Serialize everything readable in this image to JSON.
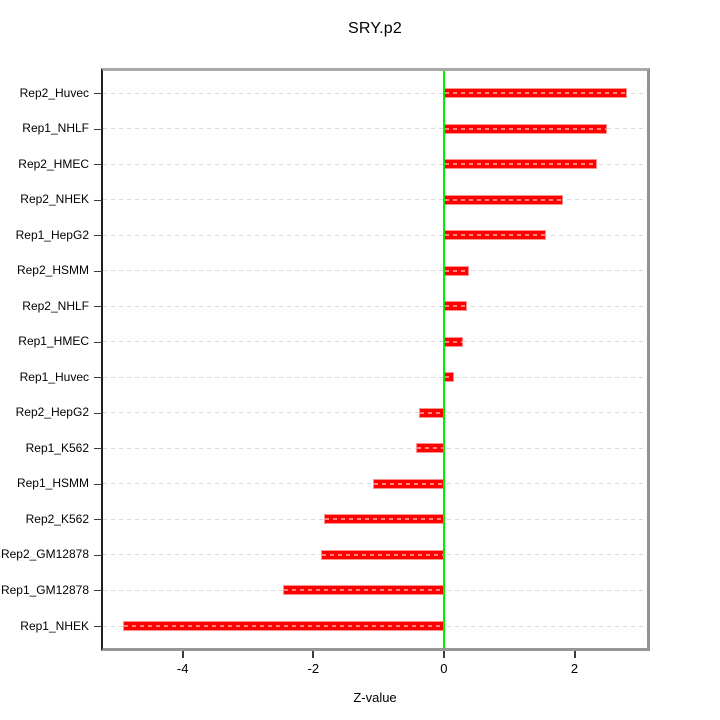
{
  "title": "SRY.p2",
  "axis": {
    "xlabel": "Z-value",
    "xtick_labels": [
      "-4",
      "-2",
      "0",
      "2"
    ]
  },
  "chart_data": {
    "type": "bar",
    "orientation": "horizontal",
    "title": "SRY.p2",
    "xlabel": "Z-value",
    "ylabel": "",
    "legend": "none",
    "grid": "horizontal dashed line at each category",
    "categories": [
      "Rep2_Huvec",
      "Rep1_NHLF",
      "Rep2_HMEC",
      "Rep2_NHEK",
      "Rep1_HepG2",
      "Rep2_HSMM",
      "Rep2_NHLF",
      "Rep1_HMEC",
      "Rep1_Huvec",
      "Rep2_HepG2",
      "Rep1_K562",
      "Rep1_HSMM",
      "Rep2_K562",
      "Rep2_GM12878",
      "Rep1_GM12878",
      "Rep1_NHEK"
    ],
    "values": [
      2.81,
      2.49,
      2.35,
      1.83,
      1.56,
      0.38,
      0.35,
      0.3,
      0.15,
      -0.38,
      -0.42,
      -1.08,
      -1.84,
      -1.88,
      -2.47,
      -4.91
    ],
    "xlim": [
      -5.22,
      3.11
    ],
    "xticks": [
      -4,
      -2,
      0,
      2
    ],
    "zero_reference_line": 0,
    "colors": {
      "bar_fill": "#FE0000",
      "bar_border": "#FF9090",
      "zero_line": "#00EE00",
      "grid_line": "#D8D8D8",
      "axis_box": "#999999",
      "text": "#000000"
    }
  }
}
